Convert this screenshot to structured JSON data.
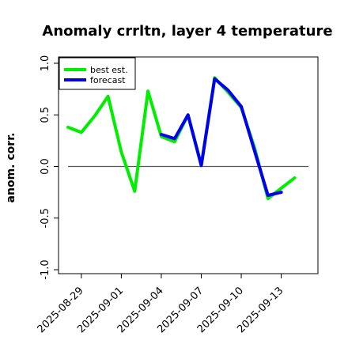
{
  "chart_data": {
    "type": "line",
    "title": "Anomaly crrltn, layer 4 temperature",
    "xlabel": "",
    "ylabel": "anom. corr.",
    "ylim": [
      -1.0,
      1.0
    ],
    "y_ticks": [
      "-1.0",
      "-0.5",
      "0.0",
      "0.5",
      "1.0"
    ],
    "x_tick_labels": [
      "2025-08-29",
      "2025-09-01",
      "2025-09-04",
      "2025-09-07",
      "2025-09-10",
      "2025-09-13"
    ],
    "highlight_tick": "2025-09-04",
    "reference_line": 0.0,
    "legend": {
      "placement": "top-left"
    },
    "x": [
      "2025-08-28",
      "2025-08-29",
      "2025-08-30",
      "2025-08-31",
      "2025-09-01",
      "2025-09-02",
      "2025-09-03",
      "2025-09-04",
      "2025-09-05",
      "2025-09-06",
      "2025-09-07",
      "2025-09-08",
      "2025-09-09",
      "2025-09-10",
      "2025-09-11",
      "2025-09-12",
      "2025-09-13",
      "2025-09-14"
    ],
    "series": [
      {
        "name": "best est.",
        "color": "#00ee00",
        "values": [
          0.38,
          0.33,
          0.49,
          0.68,
          0.14,
          -0.24,
          0.73,
          0.29,
          0.24,
          0.5,
          0.01,
          0.86,
          0.72,
          0.57,
          0.18,
          -0.31,
          -0.21,
          -0.11
        ]
      },
      {
        "name": "forecast",
        "color": "#0000ee",
        "values": [
          null,
          null,
          null,
          null,
          null,
          null,
          null,
          0.31,
          0.27,
          0.5,
          0.01,
          0.85,
          0.74,
          0.58,
          0.15,
          -0.28,
          -0.25,
          null
        ]
      }
    ],
    "grid": false
  },
  "colors": {
    "highlight_tick": "#228b22",
    "reference_line": "#555555",
    "axis": "#000000"
  }
}
